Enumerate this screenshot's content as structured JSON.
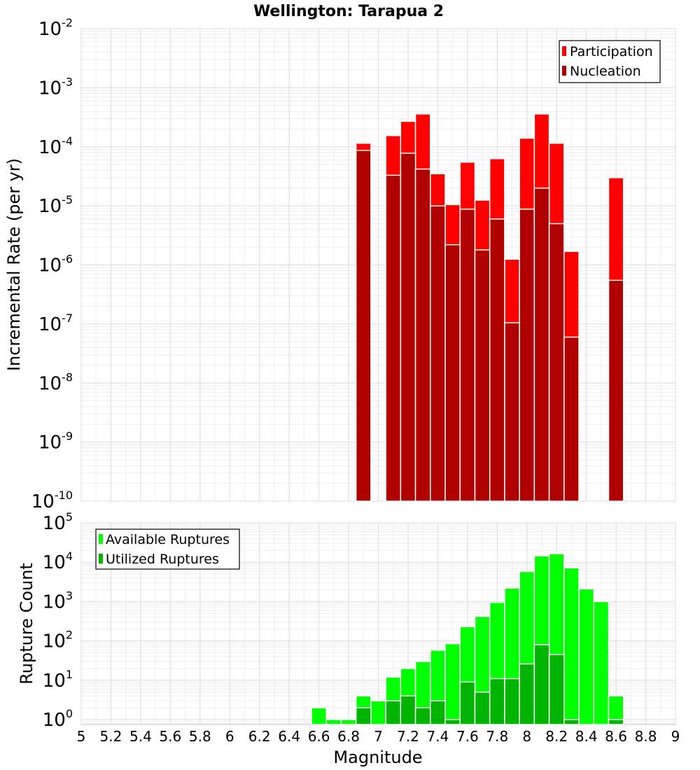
{
  "title": "Wellington: Tarарua 2",
  "xlabel": "Magnitude",
  "colors": {
    "participation": "#ff0000",
    "nucleation": "#b00000",
    "available": "#00ff00",
    "utilized": "#00b400"
  },
  "chart_data": [
    {
      "type": "bar",
      "ylabel": "Incremental Rate (per yr)",
      "yscale": "log",
      "xlim": [
        5,
        9
      ],
      "ylim": [
        1e-10,
        0.01
      ],
      "grid": true,
      "legend_position": "top-right",
      "x": [
        6.9,
        7.1,
        7.2,
        7.3,
        7.4,
        7.5,
        7.6,
        7.7,
        7.8,
        7.9,
        8.0,
        8.1,
        8.2,
        8.3,
        8.6
      ],
      "series": [
        {
          "name": "Participation",
          "values": [
            0.000115,
            0.000155,
            0.00027,
            0.00036,
            3.5e-05,
            1.05e-05,
            5.5e-05,
            1.25e-05,
            6.3e-05,
            1.25e-06,
            0.00014,
            0.00036,
            0.000115,
            1.7e-06,
            3e-05
          ]
        },
        {
          "name": "Nucleation",
          "values": [
            8.7e-05,
            3.3e-05,
            7.8e-05,
            4.2e-05,
            1e-05,
            2.2e-06,
            8.8e-06,
            1.8e-06,
            6e-06,
            1.05e-07,
            8.8e-06,
            2e-05,
            5e-06,
            6e-08,
            5.5e-07
          ]
        }
      ]
    },
    {
      "type": "bar",
      "ylabel": "Rupture Count",
      "yscale": "log",
      "xlim": [
        5,
        9
      ],
      "ylim": [
        0.75,
        100000.0
      ],
      "grid": true,
      "legend_position": "top-left",
      "x": [
        6.6,
        6.7,
        6.8,
        6.9,
        7.0,
        7.1,
        7.2,
        7.3,
        7.4,
        7.5,
        7.6,
        7.7,
        7.8,
        7.9,
        8.0,
        8.1,
        8.2,
        8.3,
        8.4,
        8.5,
        8.6
      ],
      "series": [
        {
          "name": "Available Ruptures",
          "values": [
            2,
            1,
            1,
            4,
            3,
            12,
            20,
            30,
            58,
            85,
            230,
            420,
            950,
            2200,
            5800,
            14500,
            16500,
            7200,
            2100,
            1000,
            4
          ]
        },
        {
          "name": "Utilized Ruptures",
          "values": [
            0,
            0,
            0,
            2,
            0,
            3,
            4,
            2,
            3,
            1,
            9,
            5,
            11,
            11,
            26,
            80,
            45,
            1,
            0,
            0,
            1
          ]
        }
      ]
    }
  ],
  "x_ticks": [
    "5",
    "5.2",
    "5.4",
    "5.6",
    "5.8",
    "6",
    "6.2",
    "6.4",
    "6.6",
    "6.8",
    "7",
    "7.2",
    "7.4",
    "7.6",
    "7.8",
    "8",
    "8.2",
    "8.4",
    "8.6",
    "8.8",
    "9"
  ],
  "top_y_ticks": [
    {
      "base": "10",
      "exp": "-10"
    },
    {
      "base": "10",
      "exp": "-9"
    },
    {
      "base": "10",
      "exp": "-8"
    },
    {
      "base": "10",
      "exp": "-7"
    },
    {
      "base": "10",
      "exp": "-6"
    },
    {
      "base": "10",
      "exp": "-5"
    },
    {
      "base": "10",
      "exp": "-4"
    },
    {
      "base": "10",
      "exp": "-3"
    },
    {
      "base": "10",
      "exp": "-2"
    }
  ],
  "bottom_y_ticks": [
    {
      "base": "10",
      "exp": "0"
    },
    {
      "base": "10",
      "exp": "1"
    },
    {
      "base": "10",
      "exp": "2"
    },
    {
      "base": "10",
      "exp": "3"
    },
    {
      "base": "10",
      "exp": "4"
    },
    {
      "base": "10",
      "exp": "5"
    }
  ]
}
